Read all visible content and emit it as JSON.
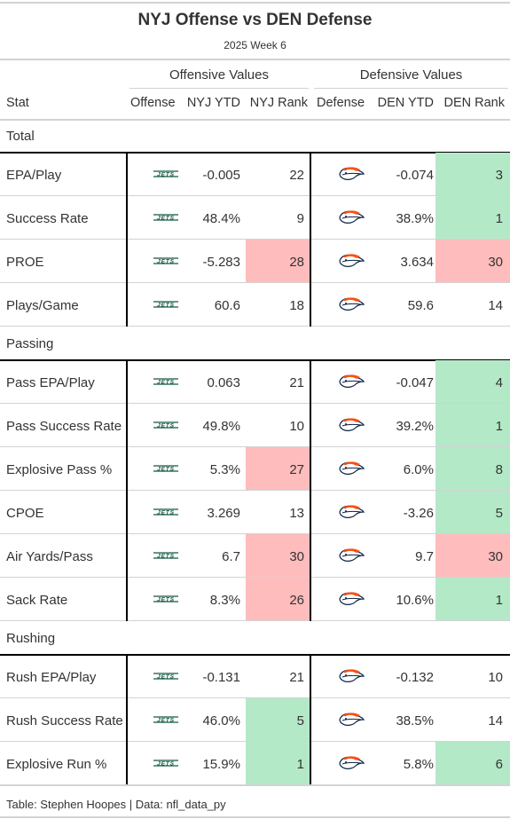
{
  "chart_data": {
    "type": "table",
    "title": "NYJ Offense vs DEN Defense",
    "subtitle": "2025 Week 6",
    "spanners": {
      "offense": "Offensive Values",
      "defense": "Defensive Values"
    },
    "columns": [
      "Stat",
      "Offense",
      "NYJ YTD",
      "NYJ Rank",
      "Defense",
      "DEN YTD",
      "DEN Rank"
    ],
    "offense_logo": "jets-logo-icon",
    "defense_logo": "broncos-logo-icon",
    "highlight_colors": {
      "good": "#b3e9c7",
      "bad": "#ffbcbc"
    },
    "groups": [
      {
        "label": "Total",
        "rows": [
          {
            "stat": "EPA/Play",
            "off_ytd": "-0.005",
            "off_rank": "22",
            "off_hl": "",
            "def_ytd": "-0.074",
            "def_rank": "3",
            "def_hl": "good"
          },
          {
            "stat": "Success Rate",
            "off_ytd": "48.4%",
            "off_rank": "9",
            "off_hl": "",
            "def_ytd": "38.9%",
            "def_rank": "1",
            "def_hl": "good"
          },
          {
            "stat": "PROE",
            "off_ytd": "-5.283",
            "off_rank": "28",
            "off_hl": "bad",
            "def_ytd": "3.634",
            "def_rank": "30",
            "def_hl": "bad"
          },
          {
            "stat": "Plays/Game",
            "off_ytd": "60.6",
            "off_rank": "18",
            "off_hl": "",
            "def_ytd": "59.6",
            "def_rank": "14",
            "def_hl": ""
          }
        ]
      },
      {
        "label": "Passing",
        "rows": [
          {
            "stat": "Pass EPA/Play",
            "off_ytd": "0.063",
            "off_rank": "21",
            "off_hl": "",
            "def_ytd": "-0.047",
            "def_rank": "4",
            "def_hl": "good"
          },
          {
            "stat": "Pass Success Rate",
            "off_ytd": "49.8%",
            "off_rank": "10",
            "off_hl": "",
            "def_ytd": "39.2%",
            "def_rank": "1",
            "def_hl": "good"
          },
          {
            "stat": "Explosive Pass %",
            "off_ytd": "5.3%",
            "off_rank": "27",
            "off_hl": "bad",
            "def_ytd": "6.0%",
            "def_rank": "8",
            "def_hl": "good"
          },
          {
            "stat": "CPOE",
            "off_ytd": "3.269",
            "off_rank": "13",
            "off_hl": "",
            "def_ytd": "-3.26",
            "def_rank": "5",
            "def_hl": "good"
          },
          {
            "stat": "Air Yards/Pass",
            "off_ytd": "6.7",
            "off_rank": "30",
            "off_hl": "bad",
            "def_ytd": "9.7",
            "def_rank": "30",
            "def_hl": "bad"
          },
          {
            "stat": "Sack Rate",
            "off_ytd": "8.3%",
            "off_rank": "26",
            "off_hl": "bad",
            "def_ytd": "10.6%",
            "def_rank": "1",
            "def_hl": "good"
          }
        ]
      },
      {
        "label": "Rushing",
        "rows": [
          {
            "stat": "Rush EPA/Play",
            "off_ytd": "-0.131",
            "off_rank": "21",
            "off_hl": "",
            "def_ytd": "-0.132",
            "def_rank": "10",
            "def_hl": ""
          },
          {
            "stat": "Rush Success Rate",
            "off_ytd": "46.0%",
            "off_rank": "5",
            "off_hl": "good",
            "def_ytd": "38.5%",
            "def_rank": "14",
            "def_hl": ""
          },
          {
            "stat": "Explosive Run %",
            "off_ytd": "15.9%",
            "off_rank": "1",
            "off_hl": "good",
            "def_ytd": "5.8%",
            "def_rank": "6",
            "def_hl": "good"
          }
        ]
      }
    ],
    "source_note": "Table: Stephen Hoopes | Data: nfl_data_py"
  }
}
